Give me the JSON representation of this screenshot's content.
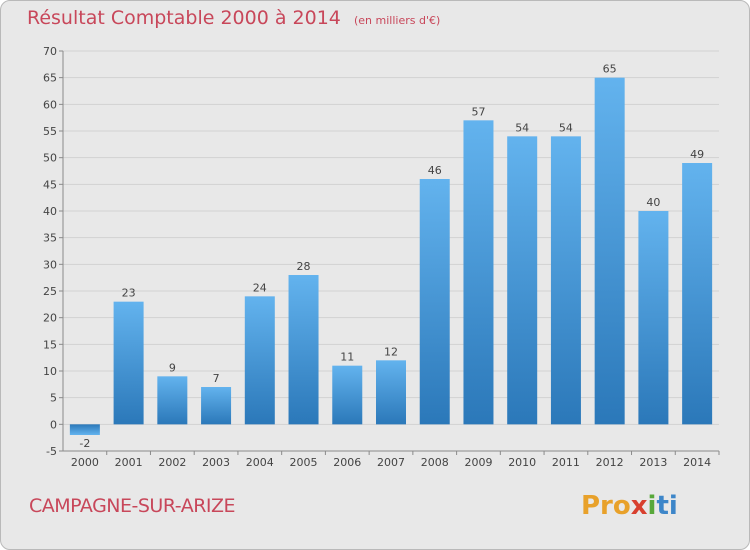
{
  "title": "Résultat Comptable 2000 à 2014",
  "subtitle": "(en milliers d'€)",
  "place": "CAMPAGNE-SUR-ARIZE",
  "logo": {
    "text": "Proxiti",
    "parts": [
      "Pro",
      "x",
      "i",
      "ti"
    ]
  },
  "colors": {
    "bar": "#5aaae6",
    "bar_dark": "#2e7ec0",
    "title": "#c8475a",
    "grid": "#cfcfcf"
  },
  "chart_data": {
    "type": "bar",
    "title": "Résultat Comptable 2000 à 2014",
    "subtitle": "(en milliers d'€)",
    "categories": [
      "2000",
      "2001",
      "2002",
      "2003",
      "2004",
      "2005",
      "2006",
      "2007",
      "2008",
      "2009",
      "2010",
      "2011",
      "2012",
      "2013",
      "2014"
    ],
    "values": [
      -2,
      23,
      9,
      7,
      24,
      28,
      11,
      12,
      46,
      57,
      54,
      54,
      65,
      40,
      49
    ],
    "data_labels": [
      "-2",
      "23",
      "9",
      "7",
      "24",
      "28",
      "11",
      "12",
      "46",
      "57",
      "54",
      "54",
      "65",
      "40",
      "49"
    ],
    "yticks": [
      "-5",
      "0",
      "5",
      "10",
      "15",
      "20",
      "25",
      "30",
      "35",
      "40",
      "45",
      "50",
      "55",
      "60",
      "65",
      "70"
    ],
    "ylim": [
      -5,
      70
    ],
    "grid": true,
    "legend": "none"
  }
}
